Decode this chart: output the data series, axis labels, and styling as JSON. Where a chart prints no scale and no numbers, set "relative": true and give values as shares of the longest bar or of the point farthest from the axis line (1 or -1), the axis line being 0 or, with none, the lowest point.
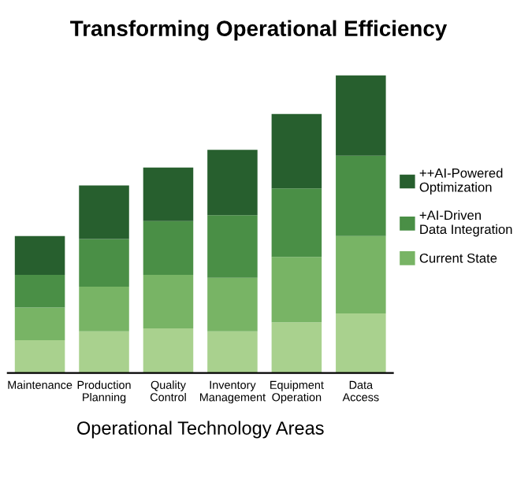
{
  "chart_data": {
    "type": "bar",
    "title": "Transforming Operational Efficiency",
    "xlabel": "Operational Technology Areas",
    "categories": [
      "Maintenance",
      "Production\nPlanning",
      "Quality\nControl",
      "Inventory\nManagement",
      "Equipment\nOperation",
      "Data\nAccess"
    ],
    "stacked": true,
    "relative": true,
    "legend": "right",
    "grid": false,
    "series": [
      {
        "color": "#a9d18e",
        "values": [
          0.11,
          0.14,
          0.15,
          0.14,
          0.17,
          0.2
        ]
      },
      {
        "name": "Current State",
        "color": "#78b465",
        "values": [
          0.11,
          0.15,
          0.18,
          0.18,
          0.22,
          0.26
        ]
      },
      {
        "name": "+AI-Driven\nData Integration",
        "color": "#4a8f46",
        "values": [
          0.11,
          0.16,
          0.18,
          0.21,
          0.23,
          0.27
        ]
      },
      {
        "name": "++AI-Powered\nOptimization",
        "color": "#275f2e",
        "values": [
          0.13,
          0.18,
          0.18,
          0.22,
          0.25,
          0.27
        ]
      }
    ]
  }
}
